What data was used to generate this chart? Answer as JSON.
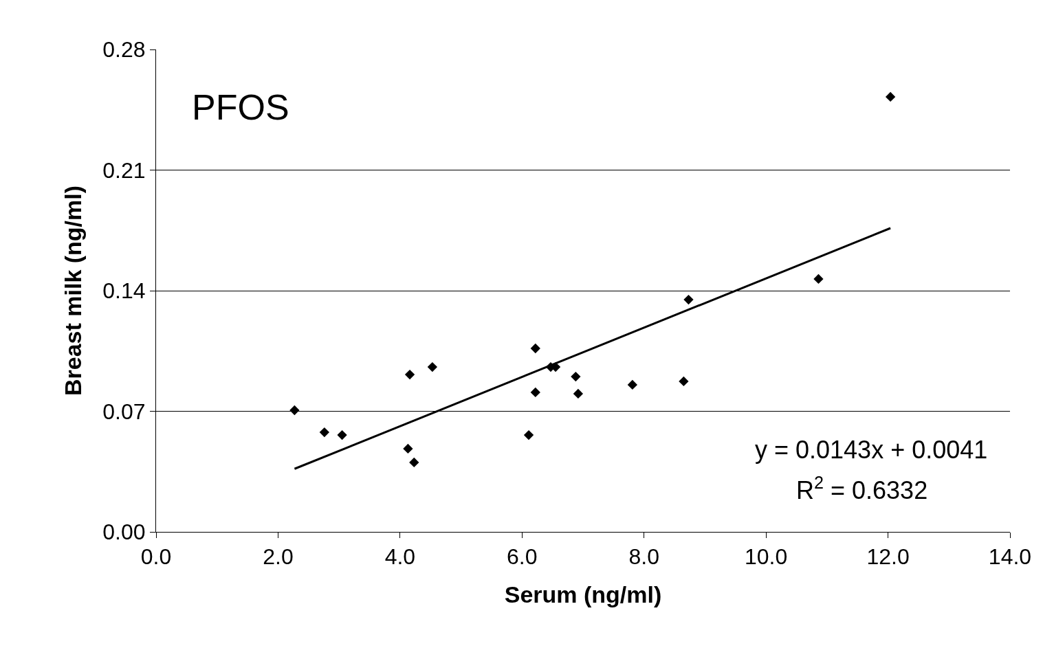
{
  "chart_data": {
    "type": "scatter",
    "xlabel": "Serum (ng/ml)",
    "ylabel": "Breast milk (ng/ml)",
    "xlim": [
      0,
      14
    ],
    "ylim": [
      0,
      0.28
    ],
    "xticks": [
      {
        "value": 0,
        "label": "0.0"
      },
      {
        "value": 2,
        "label": "2.0"
      },
      {
        "value": 4,
        "label": "4.0"
      },
      {
        "value": 6,
        "label": "6.0"
      },
      {
        "value": 8,
        "label": "8.0"
      },
      {
        "value": 10,
        "label": "10.0"
      },
      {
        "value": 12,
        "label": "12.0"
      },
      {
        "value": 14,
        "label": "14.0"
      }
    ],
    "yticks": [
      {
        "value": 0,
        "label": "0.00"
      },
      0.07,
      0.14,
      0.21,
      0.28
    ],
    "grid": "y",
    "marker": "diamond",
    "annotations": [
      "PFOS",
      "y = 0.0143x + 0.0041",
      "R$^{2}$ = 0.6332"
    ],
    "series": [
      {
        "color": "#000000",
        "x": [
          2.27,
          2.76,
          3.05,
          4.13,
          4.16,
          4.23,
          4.53,
          6.11,
          6.22,
          6.22,
          6.47,
          6.55,
          6.88,
          6.92,
          7.81,
          8.65,
          8.73,
          10.86,
          12.04
        ],
        "values": [
          0.0706,
          0.0578,
          0.0562,
          0.0483,
          0.0913,
          0.0403,
          0.0957,
          0.0562,
          0.1065,
          0.081,
          0.0957,
          0.0957,
          0.0901,
          0.0802,
          0.0854,
          0.0874,
          0.1348,
          0.1468,
          0.2525
        ]
      },
      {
        "type": "line",
        "color": "#000000",
        "marker": "none",
        "line_style": "solid",
        "x": [
          2.27,
          12.04
        ],
        "values": [
          0.0366,
          0.1763
        ]
      }
    ]
  }
}
